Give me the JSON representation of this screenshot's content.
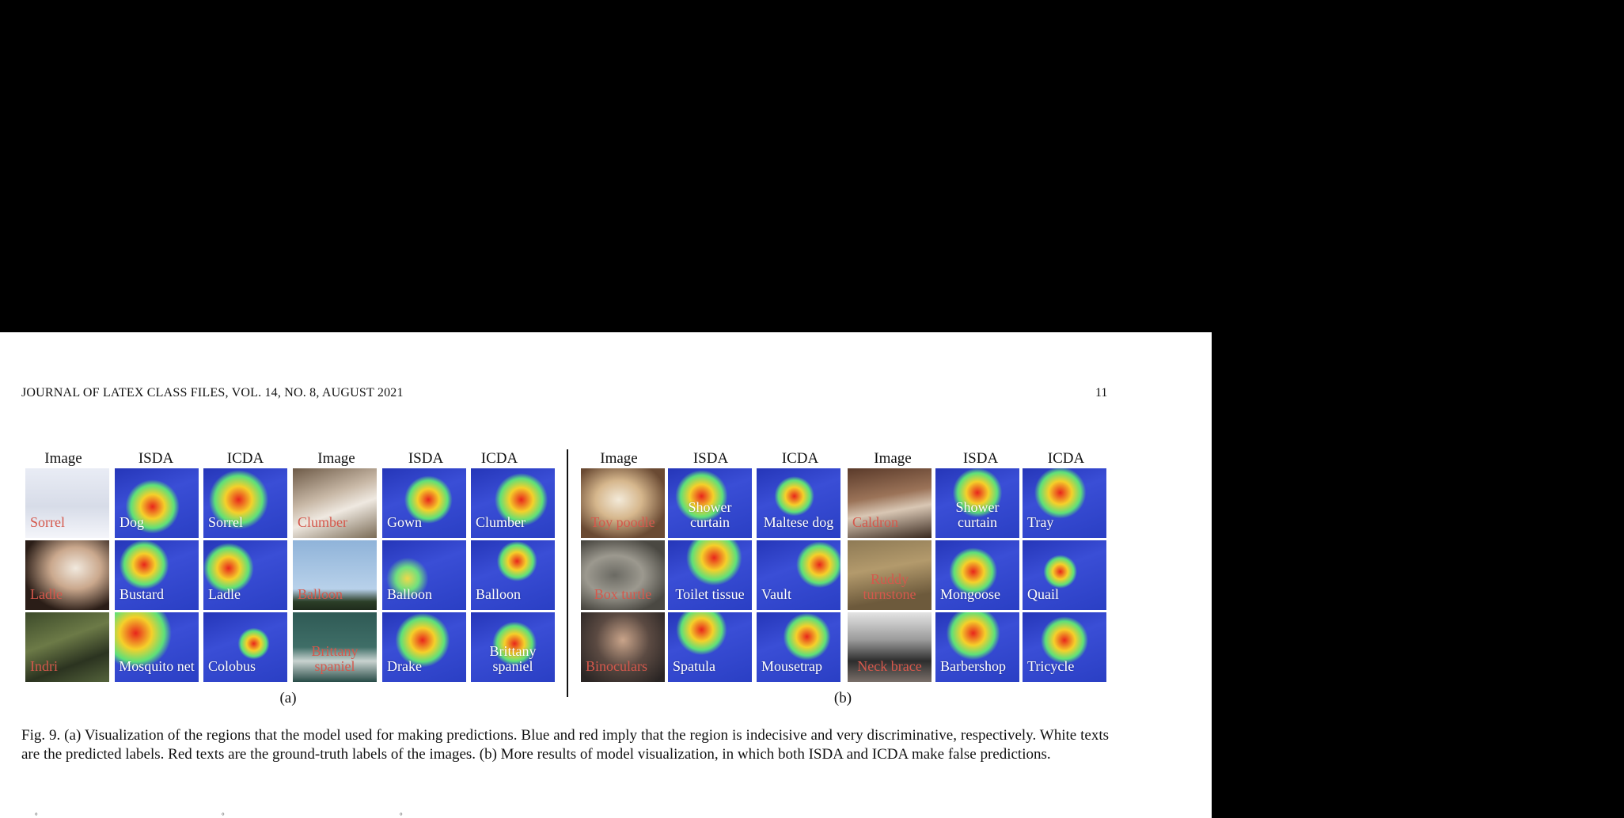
{
  "header": {
    "left": "JOURNAL OF LATEX CLASS FILES, VOL. 14, NO. 8, AUGUST 2021",
    "page_number": "11"
  },
  "columns": {
    "a": [
      "Image",
      "ISDA",
      "ICDA",
      "Image",
      "ISDA",
      "ICDA"
    ],
    "b": [
      "Image",
      "ISDA",
      "ICDA",
      "Image",
      "ISDA",
      "ICDA"
    ]
  },
  "panel_a": {
    "rows": [
      [
        "Sorrel",
        "Dog",
        "Sorrel",
        "Clumber",
        "Gown",
        "Clumber"
      ],
      [
        "Ladle",
        "Bustard",
        "Ladle",
        "Balloon",
        "Balloon",
        "Balloon"
      ],
      [
        "Indri",
        "Mosquito net",
        "Colobus",
        "Brittany spaniel",
        "Drake",
        "Brittany spaniel"
      ]
    ]
  },
  "panel_b": {
    "rows": [
      [
        "Toy poodle",
        "Shower curtain",
        "Maltese dog",
        "Caldron",
        "Shower curtain",
        "Tray"
      ],
      [
        "Box turtle",
        "Toilet tissue",
        "Vault",
        "Ruddy turnstone",
        "Mongoose",
        "Quail"
      ],
      [
        "Binoculars",
        "Spatula",
        "Mousetrap",
        "Neck brace",
        "Barbershop",
        "Tricycle"
      ]
    ]
  },
  "subcaptions": {
    "a": "(a)",
    "b": "(b)"
  },
  "caption": "Fig. 9.  (a) Visualization of the regions that the model used for making predictions. Blue and red imply that the region is indecisive and very discriminative, respectively. White texts are the predicted labels. Red texts are the ground-truth labels of the images. (b) More results of model visualization, in which both ISDA and ICDA make false predictions.",
  "colors": {
    "ground_truth_label": "#d5584c",
    "predicted_label": "#ffffff"
  }
}
